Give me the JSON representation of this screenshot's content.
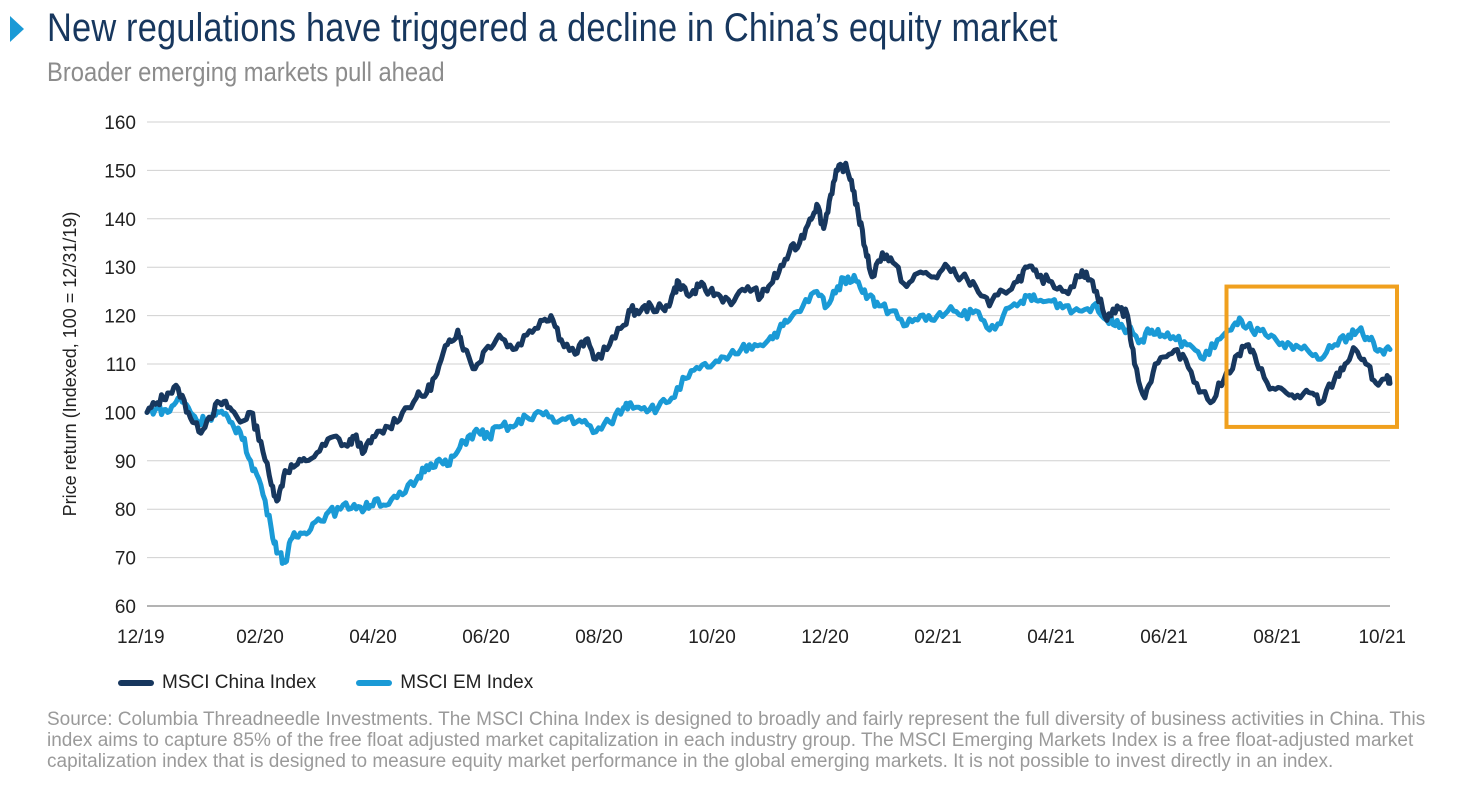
{
  "header": {
    "title": "New regulations have triggered a decline in China’s equity market",
    "subtitle": "Broader emerging markets pull ahead"
  },
  "colors": {
    "china": "#17375e",
    "em": "#1a9ad6",
    "highlight": "#f0a01e",
    "grid": "#d0d0d0",
    "marker": "#1a9ad6"
  },
  "chart_data": {
    "type": "line",
    "ylabel": "Price return (Indexed, 100 = 12/31/19)",
    "xlabel": "",
    "ylim": [
      60,
      160
    ],
    "yticks": [
      60,
      70,
      80,
      90,
      100,
      110,
      120,
      130,
      140,
      150,
      160
    ],
    "x_range": [
      "12/19",
      "10/21"
    ],
    "xticks": [
      "12/19",
      "02/20",
      "04/20",
      "06/20",
      "08/20",
      "10/20",
      "12/20",
      "02/21",
      "04/21",
      "06/21",
      "08/21",
      "10/21"
    ],
    "grid": true,
    "legend_position": "bottom-left",
    "highlight_region": {
      "x_start": "07/21",
      "x_end": "10/21",
      "y_start": 97,
      "y_end": 126
    },
    "series": [
      {
        "name": "MSCI China Index",
        "color": "#17375e",
        "points": [
          [
            0,
            100
          ],
          [
            0.15,
            102
          ],
          [
            0.3,
            104
          ],
          [
            0.45,
            105
          ],
          [
            0.6,
            100
          ],
          [
            0.75,
            96
          ],
          [
            0.9,
            99
          ],
          [
            1.05,
            102
          ],
          [
            1.2,
            101
          ],
          [
            1.35,
            98
          ],
          [
            1.5,
            100
          ],
          [
            1.65,
            94
          ],
          [
            1.8,
            85
          ],
          [
            1.9,
            82
          ],
          [
            2.0,
            88
          ],
          [
            2.15,
            89
          ],
          [
            2.3,
            90
          ],
          [
            2.5,
            92
          ],
          [
            2.7,
            95
          ],
          [
            2.9,
            93
          ],
          [
            3.0,
            95
          ],
          [
            3.15,
            92
          ],
          [
            3.3,
            95
          ],
          [
            3.5,
            97
          ],
          [
            3.7,
            100
          ],
          [
            3.9,
            103
          ],
          [
            4.05,
            104
          ],
          [
            4.2,
            108
          ],
          [
            4.35,
            114
          ],
          [
            4.5,
            117
          ],
          [
            4.6,
            113
          ],
          [
            4.75,
            109
          ],
          [
            4.9,
            113
          ],
          [
            5.1,
            116
          ],
          [
            5.3,
            113
          ],
          [
            5.5,
            116
          ],
          [
            5.7,
            119
          ],
          [
            5.85,
            120
          ],
          [
            6.0,
            115
          ],
          [
            6.2,
            112
          ],
          [
            6.35,
            115
          ],
          [
            6.5,
            111
          ],
          [
            6.7,
            114
          ],
          [
            6.9,
            118
          ],
          [
            7.0,
            121
          ],
          [
            7.15,
            121
          ],
          [
            7.3,
            122
          ],
          [
            7.5,
            121
          ],
          [
            7.6,
            124
          ],
          [
            7.7,
            127
          ],
          [
            7.85,
            124
          ],
          [
            8.0,
            126
          ],
          [
            8.15,
            125
          ],
          [
            8.3,
            124
          ],
          [
            8.5,
            123
          ],
          [
            8.7,
            126
          ],
          [
            8.9,
            124
          ],
          [
            9.0,
            126
          ],
          [
            9.15,
            129
          ],
          [
            9.3,
            133
          ],
          [
            9.45,
            135
          ],
          [
            9.6,
            140
          ],
          [
            9.7,
            143
          ],
          [
            9.8,
            138
          ],
          [
            9.9,
            145
          ],
          [
            10.0,
            150
          ],
          [
            10.1,
            151
          ],
          [
            10.2,
            148
          ],
          [
            10.3,
            141
          ],
          [
            10.4,
            134
          ],
          [
            10.5,
            128
          ],
          [
            10.65,
            133
          ],
          [
            10.8,
            131
          ],
          [
            11.0,
            126
          ],
          [
            11.2,
            129
          ],
          [
            11.4,
            128
          ],
          [
            11.6,
            130
          ],
          [
            11.8,
            128
          ],
          [
            12.0,
            126
          ],
          [
            12.2,
            122
          ],
          [
            12.4,
            125
          ],
          [
            12.6,
            127
          ],
          [
            12.75,
            130
          ],
          [
            12.9,
            128
          ],
          [
            13.1,
            127
          ],
          [
            13.3,
            125
          ],
          [
            13.5,
            128
          ],
          [
            13.6,
            129
          ],
          [
            13.75,
            125
          ],
          [
            13.9,
            119
          ],
          [
            14.05,
            122
          ],
          [
            14.2,
            120
          ],
          [
            14.3,
            110
          ],
          [
            14.45,
            103
          ],
          [
            14.6,
            110
          ],
          [
            14.8,
            112
          ],
          [
            15.0,
            112
          ],
          [
            15.2,
            106
          ],
          [
            15.4,
            102
          ],
          [
            15.6,
            107
          ],
          [
            15.8,
            112
          ],
          [
            15.95,
            114
          ],
          [
            16.1,
            109
          ],
          [
            16.3,
            105
          ],
          [
            16.5,
            104
          ],
          [
            16.7,
            103
          ],
          [
            16.85,
            104
          ],
          [
            17.0,
            102
          ],
          [
            17.2,
            107
          ],
          [
            17.35,
            110
          ],
          [
            17.5,
            113
          ],
          [
            17.65,
            110
          ],
          [
            17.8,
            106
          ],
          [
            17.95,
            107
          ],
          [
            18.0,
            106
          ]
        ]
      },
      {
        "name": "MSCI EM Index",
        "color": "#1a9ad6",
        "points": [
          [
            0,
            100
          ],
          [
            0.15,
            101
          ],
          [
            0.3,
            100
          ],
          [
            0.45,
            103
          ],
          [
            0.6,
            101
          ],
          [
            0.75,
            98
          ],
          [
            0.9,
            99
          ],
          [
            1.05,
            100
          ],
          [
            1.2,
            98
          ],
          [
            1.35,
            96
          ],
          [
            1.5,
            90
          ],
          [
            1.65,
            85
          ],
          [
            1.8,
            76
          ],
          [
            1.9,
            71
          ],
          [
            2.0,
            69
          ],
          [
            2.1,
            74
          ],
          [
            2.25,
            75
          ],
          [
            2.4,
            77
          ],
          [
            2.6,
            79
          ],
          [
            2.8,
            80
          ],
          [
            3.0,
            81
          ],
          [
            3.15,
            80
          ],
          [
            3.3,
            82
          ],
          [
            3.5,
            81
          ],
          [
            3.7,
            83
          ],
          [
            3.9,
            86
          ],
          [
            4.05,
            89
          ],
          [
            4.2,
            90
          ],
          [
            4.35,
            89
          ],
          [
            4.5,
            92
          ],
          [
            4.65,
            95
          ],
          [
            4.8,
            96
          ],
          [
            4.95,
            95
          ],
          [
            5.1,
            97
          ],
          [
            5.3,
            97
          ],
          [
            5.5,
            99
          ],
          [
            5.7,
            100
          ],
          [
            5.9,
            98
          ],
          [
            6.1,
            99
          ],
          [
            6.3,
            98
          ],
          [
            6.5,
            96
          ],
          [
            6.7,
            98
          ],
          [
            6.9,
            101
          ],
          [
            7.0,
            102
          ],
          [
            7.2,
            101
          ],
          [
            7.4,
            101
          ],
          [
            7.6,
            103
          ],
          [
            7.8,
            107
          ],
          [
            8.0,
            109
          ],
          [
            8.2,
            110
          ],
          [
            8.4,
            111
          ],
          [
            8.6,
            113
          ],
          [
            8.8,
            114
          ],
          [
            9.0,
            115
          ],
          [
            9.15,
            117
          ],
          [
            9.3,
            119
          ],
          [
            9.5,
            122
          ],
          [
            9.7,
            125
          ],
          [
            9.85,
            122
          ],
          [
            10.0,
            126
          ],
          [
            10.15,
            128
          ],
          [
            10.3,
            127
          ],
          [
            10.45,
            124
          ],
          [
            10.6,
            122
          ],
          [
            10.8,
            121
          ],
          [
            11.0,
            118
          ],
          [
            11.2,
            120
          ],
          [
            11.4,
            119
          ],
          [
            11.6,
            121
          ],
          [
            11.8,
            120
          ],
          [
            12.0,
            121
          ],
          [
            12.2,
            117
          ],
          [
            12.4,
            120
          ],
          [
            12.6,
            122
          ],
          [
            12.75,
            124
          ],
          [
            12.9,
            123
          ],
          [
            13.1,
            123
          ],
          [
            13.3,
            122
          ],
          [
            13.5,
            121
          ],
          [
            13.7,
            122
          ],
          [
            13.9,
            119
          ],
          [
            14.05,
            119
          ],
          [
            14.2,
            117
          ],
          [
            14.4,
            115
          ],
          [
            14.55,
            117
          ],
          [
            14.7,
            116
          ],
          [
            14.9,
            115
          ],
          [
            15.1,
            114
          ],
          [
            15.3,
            111
          ],
          [
            15.5,
            115
          ],
          [
            15.7,
            117
          ],
          [
            15.85,
            119
          ],
          [
            16.0,
            117
          ],
          [
            16.2,
            116
          ],
          [
            16.4,
            114
          ],
          [
            16.6,
            113
          ],
          [
            16.8,
            113
          ],
          [
            17.0,
            111
          ],
          [
            17.2,
            114
          ],
          [
            17.4,
            116
          ],
          [
            17.55,
            117
          ],
          [
            17.7,
            115
          ],
          [
            17.85,
            113
          ],
          [
            18.0,
            113
          ]
        ]
      }
    ]
  },
  "legend": {
    "china": "MSCI China Index",
    "em": "MSCI EM Index"
  },
  "source": "Source: Columbia Threadneedle Investments. The MSCI China Index is designed to broadly and fairly represent the full diversity of business activities in China. This index aims to capture 85% of the free float adjusted market capitalization in each industry group. The MSCI Emerging Markets Index is a free float-adjusted market capitalization index that is designed to measure equity market performance in the global emerging markets. It is not possible to invest directly in an index."
}
